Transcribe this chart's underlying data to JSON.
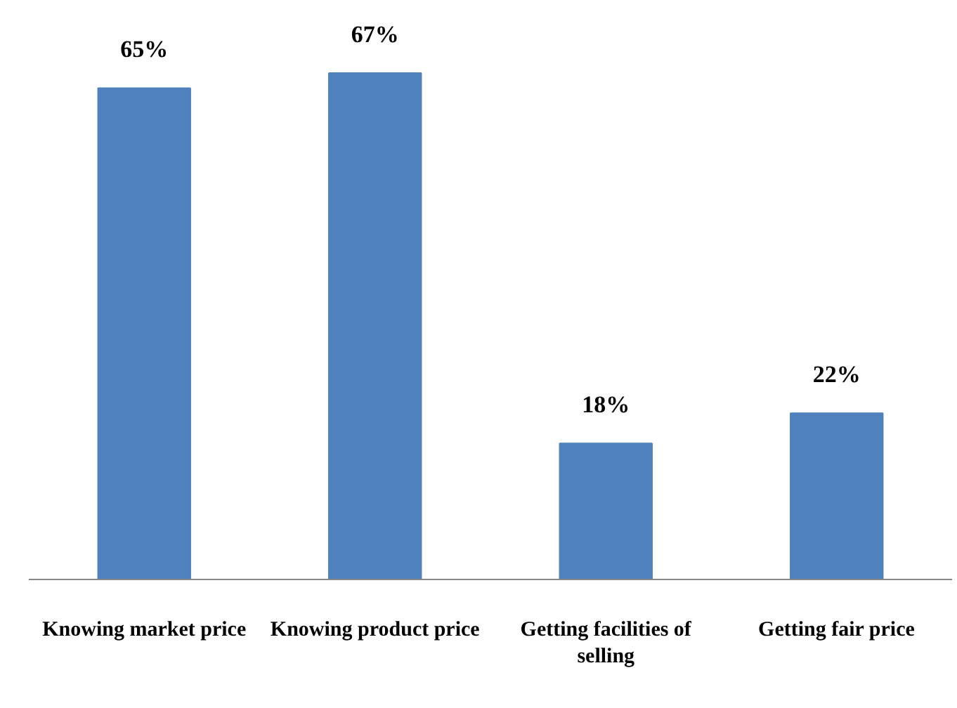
{
  "chart_data": {
    "type": "bar",
    "categories": [
      "Knowing market price",
      "Knowing product price",
      "Getting facilities of\nselling",
      "Getting fair price"
    ],
    "values": [
      65,
      67,
      18,
      22
    ],
    "color": "#4f81bd",
    "value_labels": [
      "65%",
      "67%",
      "18%",
      "22%"
    ],
    "grid": false
  }
}
